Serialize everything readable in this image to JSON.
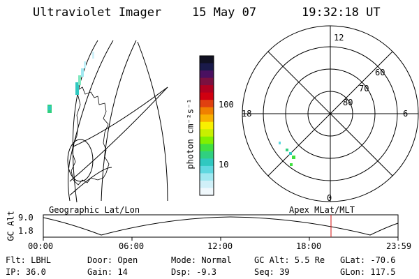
{
  "header": {
    "title": "Ultraviolet Imager",
    "date": "15 May 07",
    "time": "19:32:18 UT"
  },
  "geo_panel": {
    "label": "Geographic Lat/Lon"
  },
  "colorbar": {
    "unit_label": "photon cm⁻²s⁻¹",
    "ticks": [
      "100",
      "10"
    ],
    "colors": [
      "#111122",
      "#1a1a4a",
      "#4a1060",
      "#7a1040",
      "#b00020",
      "#d00010",
      "#e04010",
      "#f08000",
      "#f8b000",
      "#f8f000",
      "#c8f000",
      "#80f000",
      "#40e040",
      "#30d080",
      "#30c8c0",
      "#60d8e0",
      "#a0e8f0",
      "#d0f0f8",
      "#f0f8fc"
    ]
  },
  "polar_panel": {
    "label": "Apex MLat/MLT",
    "mlt_labels": [
      "12",
      "18",
      "6",
      "0"
    ],
    "lat_labels": [
      "60",
      "70",
      "80"
    ]
  },
  "timeline": {
    "ylabel": "GC Alt",
    "ytick_top": "9.0",
    "ytick_bottom": "1.8",
    "xticks": [
      "00:00",
      "06:00",
      "12:00",
      "18:00",
      "23:59"
    ],
    "marker_color": "#d01010"
  },
  "info": {
    "flt": "Flt: LBHL",
    "ip": "IP: 36.0",
    "door": "Door: Open",
    "gain": "Gain: 14",
    "mode": "Mode: Normal",
    "dsp": "Dsp:   -9.3",
    "gcalt": "GC Alt: 5.5 Re",
    "seq": "Seq: 39",
    "glat": "GLat: -70.6",
    "glon": "GLon: 117.5"
  }
}
